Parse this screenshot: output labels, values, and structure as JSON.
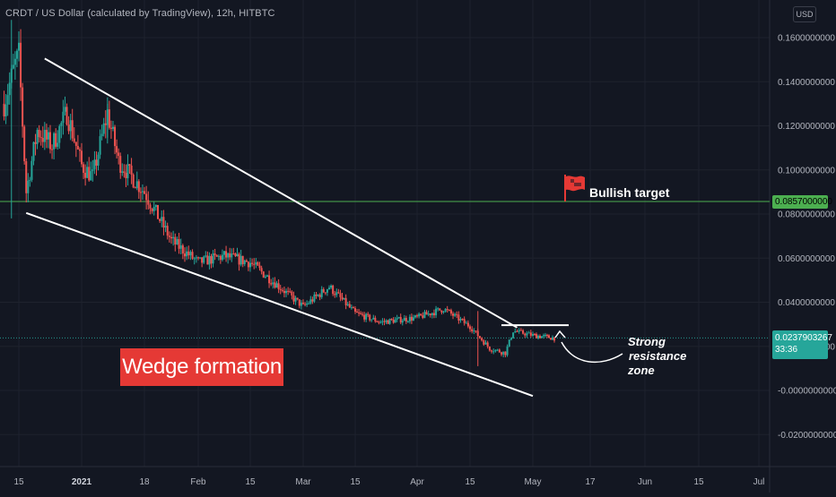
{
  "header": {
    "title": "CRDT / US Dollar (calculated by TradingView), 12h, HITBTC",
    "currency_button": "USD"
  },
  "annotations": {
    "wedge_label": "Wedge formation",
    "bullish_label": "Bullish target",
    "resistance_lines": [
      "Strong",
      "resistance",
      "zone"
    ]
  },
  "price_tags": {
    "target": "0.0857000000",
    "last_price": "0.0237903267",
    "countdown": "33:36"
  },
  "colors": {
    "background": "#131722",
    "up": "#26a69a",
    "down": "#ef5350",
    "target_line": "#4caf50",
    "last_line": "#26a69a",
    "wedge_box": "#e53935",
    "flag": "#e53935"
  },
  "chart_data": {
    "type": "candlestick",
    "title": "CRDT / US Dollar (calculated by TradingView), 12h, HITBTC",
    "y_ticks": [
      "0.1600000000",
      "0.1400000000",
      "0.1200000000",
      "0.1000000000",
      "0.0800000000",
      "0.0600000000",
      "0.0400000000",
      "0.0200000000",
      "-0.0000000000",
      "-0.0200000000"
    ],
    "y_tick_values": [
      0.16,
      0.14,
      0.12,
      0.1,
      0.08,
      0.06,
      0.04,
      0.02,
      0.0,
      -0.02
    ],
    "ylim": [
      -0.0285,
      0.1735
    ],
    "x_ticks": [
      {
        "label": "15",
        "bold": false
      },
      {
        "label": "2021",
        "bold": true
      },
      {
        "label": "18",
        "bold": false
      },
      {
        "label": "Feb",
        "bold": false
      },
      {
        "label": "15",
        "bold": false
      },
      {
        "label": "Mar",
        "bold": false
      },
      {
        "label": "15",
        "bold": false
      },
      {
        "label": "Apr",
        "bold": false
      },
      {
        "label": "15",
        "bold": false
      },
      {
        "label": "May",
        "bold": false
      },
      {
        "label": "17",
        "bold": false
      },
      {
        "label": "Jun",
        "bold": false
      },
      {
        "label": "15",
        "bold": false
      },
      {
        "label": "Jul",
        "bold": false
      }
    ],
    "x_tick_dates": [
      "2020-12-15",
      "2021-01-01",
      "2021-01-18",
      "2021-02-01",
      "2021-02-15",
      "2021-03-01",
      "2021-03-15",
      "2021-04-01",
      "2021-04-15",
      "2021-05-01",
      "2021-05-17",
      "2021-06-01",
      "2021-06-15",
      "2021-07-01"
    ],
    "bullish_target": 0.0857,
    "last_price": 0.0237903267,
    "close_path": [
      {
        "date": "2020-12-11",
        "value": 0.13
      },
      {
        "date": "2020-12-14",
        "value": 0.148
      },
      {
        "date": "2020-12-15",
        "value": 0.152
      },
      {
        "date": "2020-12-17",
        "value": 0.09
      },
      {
        "date": "2020-12-20",
        "value": 0.118
      },
      {
        "date": "2020-12-24",
        "value": 0.111
      },
      {
        "date": "2020-12-28",
        "value": 0.126
      },
      {
        "date": "2021-01-01",
        "value": 0.102
      },
      {
        "date": "2021-01-04",
        "value": 0.097
      },
      {
        "date": "2021-01-08",
        "value": 0.126
      },
      {
        "date": "2021-01-11",
        "value": 0.104
      },
      {
        "date": "2021-01-18",
        "value": 0.09
      },
      {
        "date": "2021-01-25",
        "value": 0.068
      },
      {
        "date": "2021-02-01",
        "value": 0.058
      },
      {
        "date": "2021-02-08",
        "value": 0.061
      },
      {
        "date": "2021-02-15",
        "value": 0.058
      },
      {
        "date": "2021-02-22",
        "value": 0.048
      },
      {
        "date": "2021-03-01",
        "value": 0.038
      },
      {
        "date": "2021-03-08",
        "value": 0.047
      },
      {
        "date": "2021-03-15",
        "value": 0.035
      },
      {
        "date": "2021-03-22",
        "value": 0.031
      },
      {
        "date": "2021-04-01",
        "value": 0.033
      },
      {
        "date": "2021-04-08",
        "value": 0.037
      },
      {
        "date": "2021-04-15",
        "value": 0.029
      },
      {
        "date": "2021-04-20",
        "value": 0.019
      },
      {
        "date": "2021-04-24",
        "value": 0.017
      },
      {
        "date": "2021-04-26",
        "value": 0.027
      },
      {
        "date": "2021-05-01",
        "value": 0.025
      },
      {
        "date": "2021-05-07",
        "value": 0.0238
      }
    ],
    "drawings": {
      "wedge_upper": [
        {
          "date": "2020-12-22",
          "value": 0.1505
        },
        {
          "date": "2021-04-27",
          "value": 0.0285
        }
      ],
      "wedge_lower": [
        {
          "date": "2020-12-17",
          "value": 0.0805
        },
        {
          "date": "2021-05-01",
          "value": -0.0025
        }
      ],
      "resistance": [
        {
          "date": "2021-04-23",
          "value": 0.0296
        },
        {
          "date": "2021-05-11",
          "value": 0.0296
        }
      ]
    }
  }
}
